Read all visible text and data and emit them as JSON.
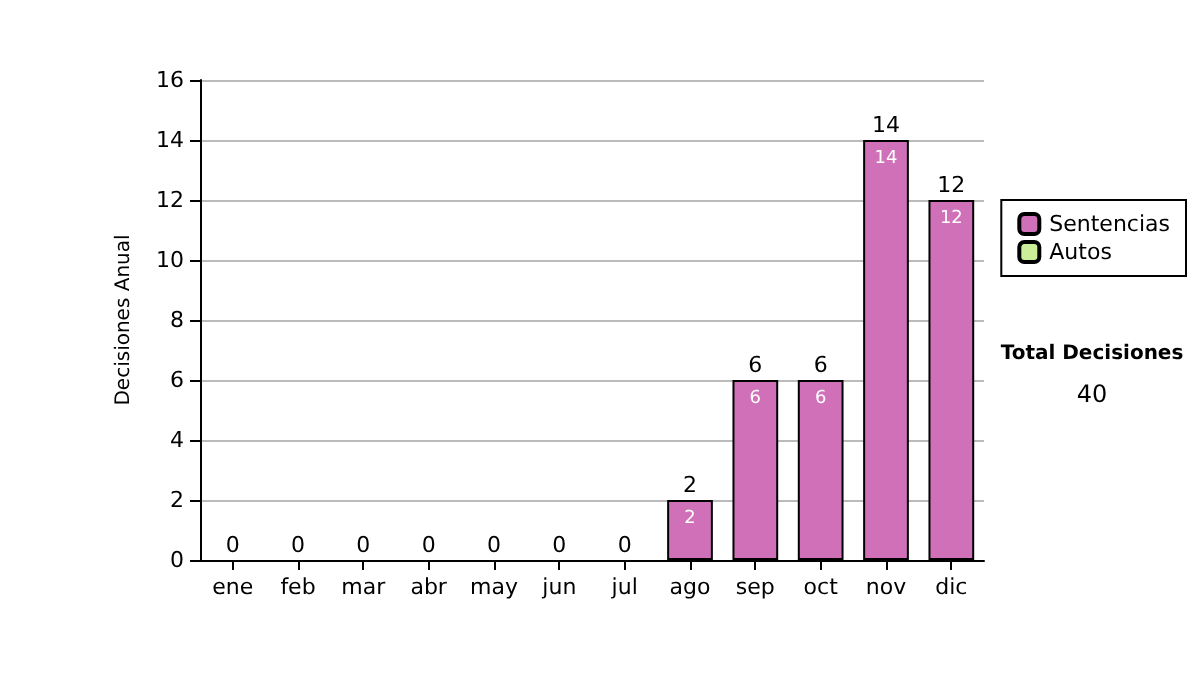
{
  "chart_data": {
    "type": "bar",
    "stacked": true,
    "ylabel": "Decisiones Anual",
    "categories": [
      "ene",
      "feb",
      "mar",
      "abr",
      "may",
      "jun",
      "jul",
      "ago",
      "sep",
      "oct",
      "nov",
      "dic"
    ],
    "series": [
      {
        "name": "Sentencias",
        "color": "#d070b8",
        "values": [
          0,
          0,
          0,
          0,
          0,
          0,
          0,
          2,
          6,
          6,
          14,
          12
        ],
        "value_labels": [
          null,
          null,
          null,
          null,
          null,
          null,
          null,
          "2",
          "6",
          "6",
          "14",
          "12"
        ]
      },
      {
        "name": "Autos",
        "color": "#ccee99",
        "values": [
          0,
          0,
          0,
          0,
          0,
          0,
          0,
          0,
          0,
          0,
          0,
          0
        ]
      }
    ],
    "totals": [
      "0",
      "0",
      "0",
      "0",
      "0",
      "0",
      "0",
      "2",
      "6",
      "6",
      "14",
      "12"
    ],
    "ylim": [
      0,
      16
    ],
    "yticks": [
      0,
      2,
      4,
      6,
      8,
      10,
      12,
      14,
      16
    ],
    "grid": "y",
    "legend": "right",
    "annotations": [
      "Total Decisiones",
      "40"
    ]
  }
}
